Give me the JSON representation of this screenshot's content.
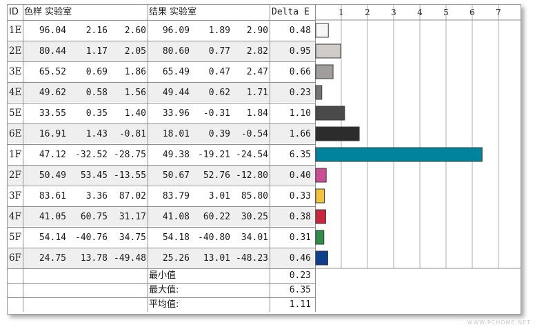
{
  "table": {
    "headers": {
      "id": "ID",
      "sample": "色样 实验室",
      "result": "结果 实验室",
      "delta": "Delta E"
    },
    "rows": [
      {
        "id": "1E",
        "s1": "96.04",
        "s2": "2.16",
        "s3": "2.60",
        "r1": "96.09",
        "r2": "1.89",
        "r3": "2.90",
        "de": "0.48"
      },
      {
        "id": "2E",
        "s1": "80.44",
        "s2": "1.17",
        "s3": "2.05",
        "r1": "80.60",
        "r2": "0.77",
        "r3": "2.82",
        "de": "0.95"
      },
      {
        "id": "3E",
        "s1": "65.52",
        "s2": "0.69",
        "s3": "1.86",
        "r1": "65.49",
        "r2": "0.47",
        "r3": "2.47",
        "de": "0.66"
      },
      {
        "id": "4E",
        "s1": "49.62",
        "s2": "0.58",
        "s3": "1.56",
        "r1": "49.44",
        "r2": "0.62",
        "r3": "1.71",
        "de": "0.23"
      },
      {
        "id": "5E",
        "s1": "33.55",
        "s2": "0.35",
        "s3": "1.40",
        "r1": "33.96",
        "r2": "-0.31",
        "r3": "1.84",
        "de": "1.10"
      },
      {
        "id": "6E",
        "s1": "16.91",
        "s2": "1.43",
        "s3": "-0.81",
        "r1": "18.01",
        "r2": "0.39",
        "r3": "-0.54",
        "de": "1.66"
      },
      {
        "id": "1F",
        "s1": "47.12",
        "s2": "-32.52",
        "s3": "-28.75",
        "r1": "49.38",
        "r2": "-19.21",
        "r3": "-24.54",
        "de": "6.35"
      },
      {
        "id": "2F",
        "s1": "50.49",
        "s2": "53.45",
        "s3": "-13.55",
        "r1": "50.67",
        "r2": "52.76",
        "r3": "-12.80",
        "de": "0.40"
      },
      {
        "id": "3F",
        "s1": "83.61",
        "s2": "3.36",
        "s3": "87.02",
        "r1": "83.79",
        "r2": "3.01",
        "r3": "85.80",
        "de": "0.33"
      },
      {
        "id": "4F",
        "s1": "41.05",
        "s2": "60.75",
        "s3": "31.17",
        "r1": "41.08",
        "r2": "60.22",
        "r3": "30.25",
        "de": "0.38"
      },
      {
        "id": "5F",
        "s1": "54.14",
        "s2": "-40.76",
        "s3": "34.75",
        "r1": "54.18",
        "r2": "-40.80",
        "r3": "34.01",
        "de": "0.31"
      },
      {
        "id": "6F",
        "s1": "24.75",
        "s2": "13.78",
        "s3": "-49.48",
        "r1": "25.26",
        "r2": "13.01",
        "r3": "-48.23",
        "de": "0.46"
      }
    ],
    "summary": [
      {
        "label": "最小值",
        "value": "0.23"
      },
      {
        "label": "最大值:",
        "value": "6.35"
      },
      {
        "label": "平均值:",
        "value": "1.11"
      }
    ],
    "row_shading": [
      "#ffffff",
      "#efefef"
    ]
  },
  "chart_data": {
    "type": "bar",
    "orientation": "horizontal",
    "categories": [
      "1E",
      "2E",
      "3E",
      "4E",
      "5E",
      "6E",
      "1F",
      "2F",
      "3F",
      "4F",
      "5F",
      "6F"
    ],
    "values": [
      0.48,
      0.95,
      0.66,
      0.23,
      1.1,
      1.66,
      6.35,
      0.4,
      0.33,
      0.38,
      0.31,
      0.46
    ],
    "colors": [
      "#f6f6f6",
      "#cfcbc7",
      "#a09d9a",
      "#77736f",
      "#4a4a4a",
      "#2c2c2c",
      "#00849e",
      "#cc4f96",
      "#f3c33c",
      "#c8283e",
      "#2f8f4a",
      "#0e3f8c"
    ],
    "xlim": [
      0,
      7.4
    ],
    "xticks": [
      "1",
      "2",
      "3",
      "4",
      "5",
      "6",
      "7"
    ],
    "grid": true
  }
}
